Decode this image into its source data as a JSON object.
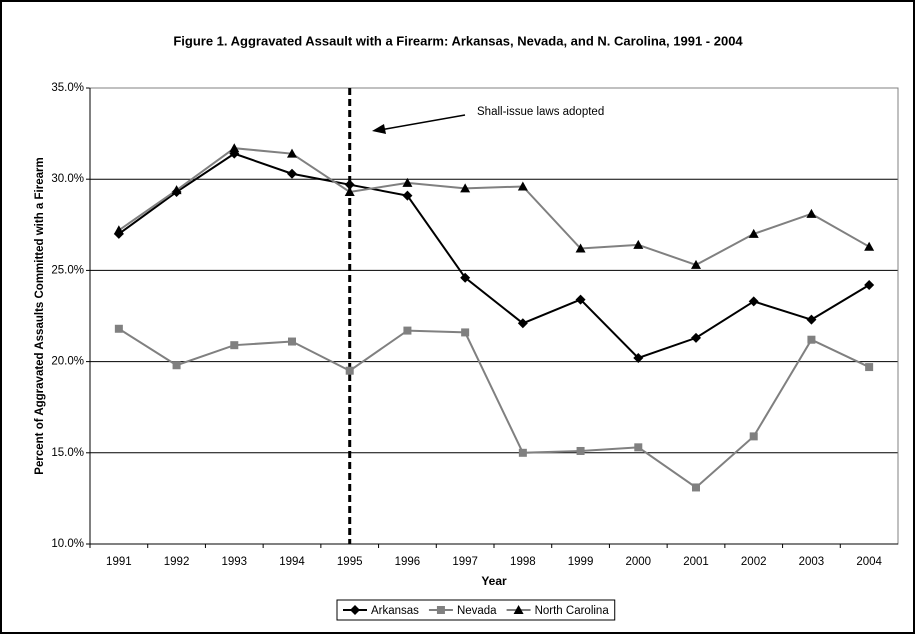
{
  "chart_data": {
    "type": "line",
    "title": "Figure 1. Aggravated Assault with a Firearm: Arkansas, Nevada, and N. Carolina, 1991 - 2004",
    "xlabel": "Year",
    "ylabel": "Percent of Aggravated Assaults Committed with a Firearm",
    "annotation": "Shall-issue laws adopted",
    "categories": [
      "1991",
      "1992",
      "1993",
      "1994",
      "1995",
      "1996",
      "1997",
      "1998",
      "1999",
      "2000",
      "2001",
      "2002",
      "2003",
      "2004"
    ],
    "series": [
      {
        "name": "Arkansas",
        "color": "#000000",
        "marker": "diamond",
        "marker_color": "#000000",
        "values": [
          27.0,
          29.3,
          31.4,
          30.3,
          29.7,
          29.1,
          24.6,
          22.1,
          23.4,
          20.2,
          21.3,
          23.3,
          22.3,
          24.2
        ]
      },
      {
        "name": "Nevada",
        "color": "#808080",
        "marker": "square",
        "marker_color": "#808080",
        "values": [
          21.8,
          19.8,
          20.9,
          21.1,
          19.5,
          21.7,
          21.6,
          15.0,
          15.1,
          15.3,
          13.1,
          15.9,
          21.2,
          19.7
        ]
      },
      {
        "name": "North Carolina",
        "color": "#808080",
        "marker": "triangle",
        "marker_color": "#000000",
        "values": [
          27.2,
          29.4,
          31.7,
          31.4,
          29.3,
          29.8,
          29.5,
          29.6,
          26.2,
          26.4,
          25.3,
          27.0,
          28.1,
          26.3
        ]
      }
    ],
    "ylim": [
      10,
      35
    ],
    "yticks": [
      {
        "value": 10,
        "label": "10.0%"
      },
      {
        "value": 15,
        "label": "15.0%"
      },
      {
        "value": 20,
        "label": "20.0%"
      },
      {
        "value": 25,
        "label": "25.0%"
      },
      {
        "value": 30,
        "label": "30.0%"
      },
      {
        "value": 35,
        "label": "35.0%"
      }
    ],
    "grid": true,
    "legend": "bottom"
  }
}
